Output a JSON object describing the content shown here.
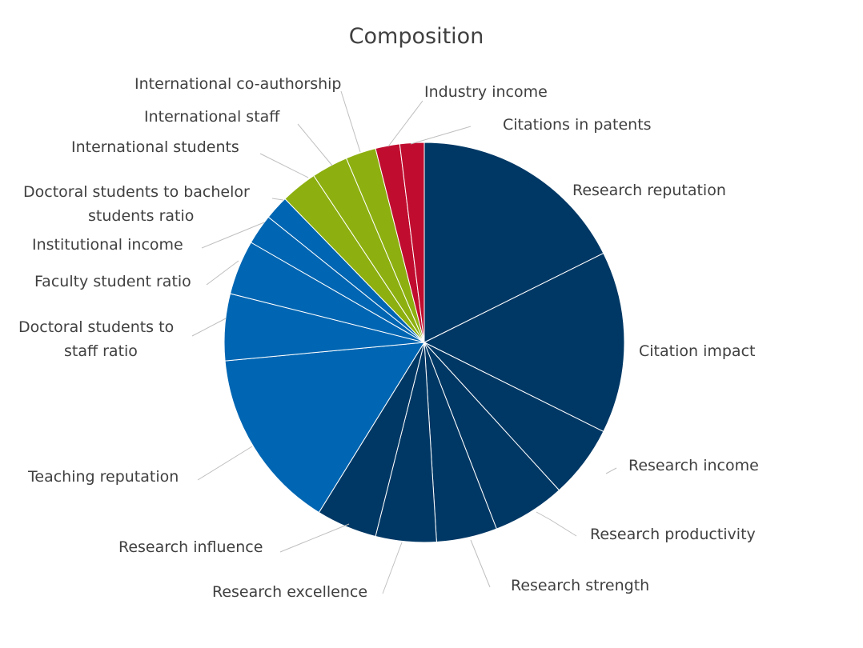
{
  "chart_data": {
    "type": "pie",
    "title": "Composition",
    "legend": "none",
    "slices": [
      {
        "label": "Research reputation",
        "value": 18,
        "color": "#003865"
      },
      {
        "label": "Citation impact",
        "value": 15,
        "color": "#003865"
      },
      {
        "label": "Research income",
        "value": 6,
        "color": "#003865"
      },
      {
        "label": "Research productivity",
        "value": 6,
        "color": "#003865"
      },
      {
        "label": "Research strength",
        "value": 5,
        "color": "#003865"
      },
      {
        "label": "Research excellence",
        "value": 5,
        "color": "#003865"
      },
      {
        "label": "Research influence",
        "value": 5,
        "color": "#003865"
      },
      {
        "label": "Teaching reputation",
        "value": 15,
        "color": "#0066b3"
      },
      {
        "label": "Doctoral students to staff ratio",
        "value": 5.5,
        "color": "#0066b3"
      },
      {
        "label": "Faculty student ratio",
        "value": 4.5,
        "color": "#0066b3"
      },
      {
        "label": "Institutional income",
        "value": 2.5,
        "color": "#0066b3"
      },
      {
        "label": "Doctoral students to bachelor students ratio",
        "value": 2,
        "color": "#0066b3"
      },
      {
        "label": "International students",
        "value": 3,
        "color": "#8db010"
      },
      {
        "label": "International staff",
        "value": 3,
        "color": "#8db010"
      },
      {
        "label": "International co-authorship",
        "value": 2.5,
        "color": "#8db010"
      },
      {
        "label": "Industry income",
        "value": 2,
        "color": "#c00d2f"
      },
      {
        "label": "Citations in patents",
        "value": 2,
        "color": "#c00d2f"
      }
    ]
  }
}
